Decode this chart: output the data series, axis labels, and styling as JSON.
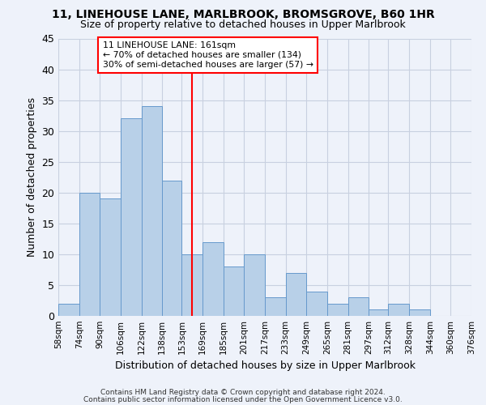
{
  "title1": "11, LINEHOUSE LANE, MARLBROOK, BROMSGROVE, B60 1HR",
  "title2": "Size of property relative to detached houses in Upper Marlbrook",
  "xlabel": "Distribution of detached houses by size in Upper Marlbrook",
  "ylabel": "Number of detached properties",
  "bin_edges": [
    58,
    74,
    90,
    106,
    122,
    138,
    153,
    169,
    185,
    201,
    217,
    233,
    249,
    265,
    281,
    297,
    312,
    328,
    344,
    360,
    376
  ],
  "counts": [
    2,
    20,
    19,
    32,
    34,
    22,
    10,
    12,
    8,
    10,
    3,
    7,
    4,
    2,
    3,
    1,
    2,
    1,
    0,
    0
  ],
  "tick_labels": [
    "58sqm",
    "74sqm",
    "90sqm",
    "106sqm",
    "122sqm",
    "138sqm",
    "153sqm",
    "169sqm",
    "185sqm",
    "201sqm",
    "217sqm",
    "233sqm",
    "249sqm",
    "265sqm",
    "281sqm",
    "297sqm",
    "312sqm",
    "328sqm",
    "344sqm",
    "360sqm",
    "376sqm"
  ],
  "bar_color": "#b8d0e8",
  "bar_edge_color": "#6699cc",
  "vline_x": 161,
  "vline_color": "red",
  "annotation_text": "11 LINEHOUSE LANE: 161sqm\n← 70% of detached houses are smaller (134)\n30% of semi-detached houses are larger (57) →",
  "annotation_box_color": "white",
  "annotation_box_edge": "red",
  "ylim": [
    0,
    45
  ],
  "yticks": [
    0,
    5,
    10,
    15,
    20,
    25,
    30,
    35,
    40,
    45
  ],
  "grid_color": "#c8d0e0",
  "background_color": "#eef2fa",
  "footer1": "Contains HM Land Registry data © Crown copyright and database right 2024.",
  "footer2": "Contains public sector information licensed under the Open Government Licence v3.0."
}
